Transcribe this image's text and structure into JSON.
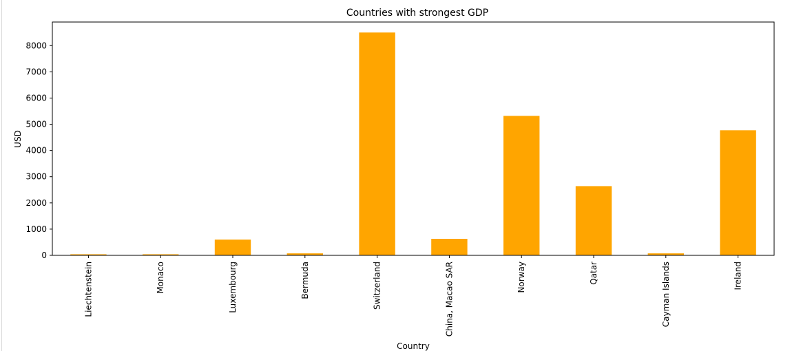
{
  "chart_data": {
    "type": "bar",
    "title": "Countries with strongest GDP",
    "xlabel": "Country",
    "ylabel": "USD",
    "categories": [
      "Liechtenstein",
      "Monaco",
      "Luxembourg",
      "Bermuda",
      "Switzerland",
      "China, Macao SAR",
      "Norway",
      "Qatar",
      "Cayman Islands",
      "Ireland"
    ],
    "values": [
      40,
      40,
      600,
      75,
      8500,
      630,
      5320,
      2640,
      75,
      4770
    ],
    "yticks": [
      0,
      1000,
      2000,
      3000,
      4000,
      5000,
      6000,
      7000,
      8000
    ],
    "ylim": [
      0,
      8900
    ],
    "bar_color": "#ffa500",
    "grid": false,
    "legend": "none"
  }
}
